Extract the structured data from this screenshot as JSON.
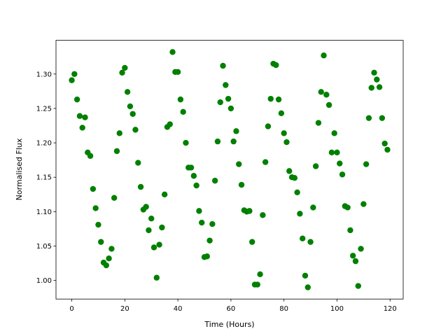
{
  "chart_data": {
    "type": "scatter",
    "x_label": "Time (Hours)",
    "y_label": "Normalised Flux",
    "color": "#008000",
    "x": [
      0,
      1,
      2,
      3,
      4,
      5,
      6,
      7,
      8,
      9,
      10,
      11,
      12,
      13,
      14,
      15,
      16,
      17,
      18,
      19,
      20,
      21,
      22,
      23,
      24,
      25,
      26,
      27,
      28,
      29,
      30,
      31,
      32,
      33,
      34,
      35,
      36,
      37,
      38,
      39,
      40,
      41,
      42,
      43,
      44,
      45,
      46,
      47,
      48,
      49,
      50,
      51,
      52,
      53,
      54,
      55,
      56,
      57,
      58,
      59,
      60,
      61,
      62,
      63,
      64,
      65,
      66,
      67,
      68,
      69,
      70,
      71,
      72,
      73,
      74,
      75,
      76,
      77,
      78,
      79,
      80,
      81,
      82,
      83,
      84,
      85,
      86,
      87,
      88,
      89,
      90,
      91,
      92,
      93,
      94,
      95,
      96,
      97,
      98,
      99,
      100,
      101,
      102,
      103,
      104,
      105,
      106,
      107,
      108,
      109,
      110,
      111,
      112,
      113,
      114,
      115,
      116,
      117,
      118,
      119
    ],
    "values": [
      1.291,
      1.3,
      1.263,
      1.239,
      1.222,
      1.237,
      1.186,
      1.181,
      1.133,
      1.105,
      1.081,
      1.056,
      1.026,
      1.022,
      1.032,
      1.046,
      1.12,
      1.188,
      1.214,
      1.302,
      1.309,
      1.274,
      1.253,
      1.242,
      1.219,
      1.171,
      1.136,
      1.103,
      1.107,
      1.073,
      1.09,
      1.048,
      1.004,
      1.052,
      1.077,
      1.125,
      1.223,
      1.227,
      1.332,
      1.303,
      1.303,
      1.263,
      1.245,
      1.2,
      1.164,
      1.164,
      1.152,
      1.138,
      1.101,
      1.084,
      1.034,
      1.035,
      1.058,
      1.082,
      1.145,
      1.202,
      1.259,
      1.312,
      1.284,
      1.264,
      1.25,
      1.202,
      1.217,
      1.169,
      1.139,
      1.102,
      1.1,
      1.101,
      1.056,
      0.994,
      0.994,
      1.009,
      1.095,
      1.172,
      1.224,
      1.264,
      1.315,
      1.313,
      1.263,
      1.243,
      1.214,
      1.201,
      1.159,
      1.15,
      1.149,
      1.128,
      1.097,
      1.061,
      1.007,
      0.99,
      1.056,
      1.106,
      1.166,
      1.229,
      1.274,
      1.327,
      1.27,
      1.255,
      1.186,
      1.214,
      1.186,
      1.17,
      1.154,
      1.108,
      1.106,
      1.073,
      1.036,
      1.028,
      0.992,
      1.046,
      1.111,
      1.169,
      1.236,
      1.28,
      1.302,
      1.292,
      1.281,
      1.236,
      1.199,
      1.19
    ],
    "xlim": [
      -5.95,
      124.95
    ],
    "xticks": [
      0,
      20,
      40,
      60,
      80,
      100,
      120
    ],
    "ylim": [
      0.973,
      1.349
    ],
    "yticks": [
      {
        "value": 1.0,
        "label": "1.00"
      },
      {
        "value": 1.05,
        "label": "1.05"
      },
      {
        "value": 1.1,
        "label": "1.10"
      },
      {
        "value": 1.15,
        "label": "1.15"
      },
      {
        "value": 1.2,
        "label": "1.20"
      },
      {
        "value": 1.25,
        "label": "1.25"
      },
      {
        "value": 1.3,
        "label": "1.30"
      }
    ]
  }
}
